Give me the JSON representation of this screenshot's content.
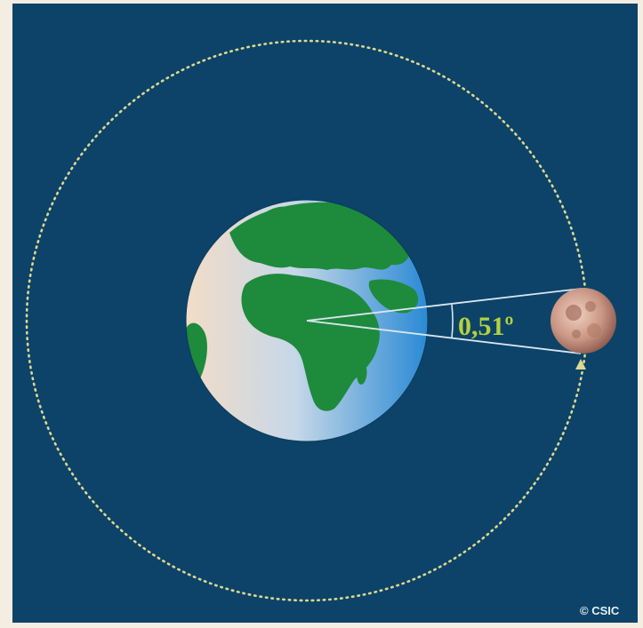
{
  "diagram": {
    "angle_label": "0,51º",
    "credit": "© CSIC"
  },
  "colors": {
    "space": "#0d4368",
    "outer_margin": "#f3ede2",
    "orbit": "#d9d48f",
    "ocean_light": "#c8d7e8",
    "ocean_mid": "#9ec3e6",
    "ocean_dark": "#2f8fd6",
    "land": "#1e8a3c",
    "land_dark": "#157030",
    "moon_light": "#e8c2b0",
    "moon_dark": "#a06a5c",
    "sightline": "#d8e6f0",
    "angle_text": "#b4d23c",
    "credit_text": "#e8eef2"
  },
  "icons": [
    "earth-icon",
    "moon-icon",
    "orbit-direction-arrow-icon"
  ]
}
